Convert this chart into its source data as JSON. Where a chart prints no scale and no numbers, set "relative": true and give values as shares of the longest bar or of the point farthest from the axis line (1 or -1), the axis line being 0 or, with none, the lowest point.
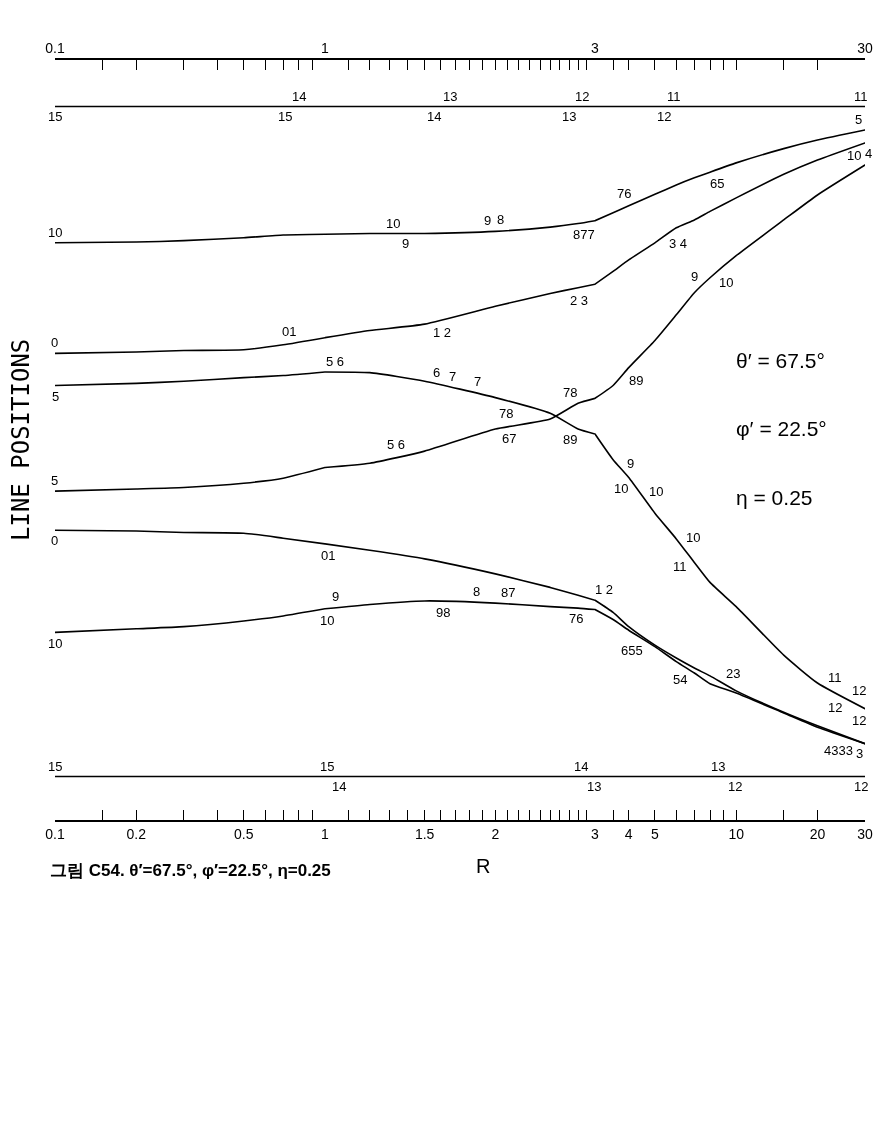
{
  "chart_data": [
    {
      "type": "line",
      "relative": true,
      "log": "x",
      "line_style": "solid",
      "title": "그림 C54. θ′=67.5°, φ′=22.5°, η=0.25",
      "ylabel": "LINE POSITIONS",
      "x": [
        0.1,
        0.2,
        0.3,
        0.5,
        0.7,
        1
      ],
      "xlim": [
        0.1,
        1
      ],
      "xticks": [
        0.1,
        {
          "value": 0.15,
          "label": null
        },
        0.2,
        {
          "value": 0.3,
          "label": null
        },
        {
          "value": 0.4,
          "label": null
        },
        0.5,
        {
          "value": 0.6,
          "label": null
        },
        {
          "value": 0.7,
          "label": null
        },
        {
          "value": 0.8,
          "label": null
        },
        {
          "value": 0.9,
          "label": null
        },
        1
      ],
      "x2lim": [
        0.1,
        1
      ],
      "x2ticks": [
        0.1,
        1
      ],
      "series": [
        {
          "color": "#000000",
          "x": [
            0.1,
            1
          ],
          "values": [
            1,
            1
          ]
        },
        {
          "color": "#000000",
          "values": [
            0.809,
            0.81,
            0.812,
            0.816,
            0.82,
            0.821
          ]
        },
        {
          "color": "#000000",
          "values": [
            0.654,
            0.656,
            0.658,
            0.659,
            0.666,
            0.676
          ]
        },
        {
          "color": "#000000",
          "values": [
            0.609,
            0.612,
            0.615,
            0.62,
            0.623,
            0.628
          ]
        },
        {
          "color": "#000000",
          "values": [
            0.461,
            0.464,
            0.466,
            0.472,
            0.479,
            0.494
          ]
        },
        {
          "color": "#000000",
          "values": [
            0.406,
            0.405,
            0.403,
            0.402,
            0.395,
            0.387
          ]
        },
        {
          "color": "#000000",
          "values": [
            0.263,
            0.268,
            0.271,
            0.279,
            0.286,
            0.296
          ]
        },
        {
          "color": "#000000",
          "x": [
            0.1,
            1
          ],
          "values": [
            0.061,
            0.061
          ]
        }
      ],
      "annotations": [
        {
          "text": "14",
          "x": 0.8,
          "y": 1
        },
        {
          "text": "15",
          "x": 0.71,
          "y": 1
        },
        {
          "text": "15",
          "x": 0.1,
          "y": 1
        },
        {
          "text": "15",
          "x": 0.1,
          "y": 0.061
        },
        {
          "text": "10",
          "x": 0.1,
          "y": 0.809
        },
        {
          "text": "0",
          "x": 0.1,
          "y": 0.654
        },
        {
          "text": "01",
          "x": 0.75,
          "y": 0.668
        },
        {
          "text": "5",
          "x": 0.1,
          "y": 0.609
        },
        {
          "text": "5",
          "x": 0.1,
          "y": 0.461
        },
        {
          "text": "0",
          "x": 0.1,
          "y": 0.406
        },
        {
          "text": "10",
          "x": 0.1,
          "y": 0.263
        },
        {
          "text": "10",
          "x": 1.0,
          "y": 0.296
        }
      ]
    },
    {
      "type": "line",
      "relative": true,
      "log": "x",
      "line_style": "solid",
      "xlabel": "R",
      "x": [
        1,
        1.2,
        1.5,
        2,
        2.5,
        2.8,
        3
      ],
      "xlim": [
        1,
        3
      ],
      "xticks": [
        {
          "value": 1.1,
          "label": null
        },
        {
          "value": 1.2,
          "label": null
        },
        {
          "value": 1.3,
          "label": null
        },
        {
          "value": 1.4,
          "label": null
        },
        1.5,
        {
          "value": 1.6,
          "label": null
        },
        {
          "value": 1.7,
          "label": null
        },
        {
          "value": 1.8,
          "label": null
        },
        {
          "value": 1.9,
          "label": null
        },
        2,
        {
          "value": 2.1,
          "label": null
        },
        {
          "value": 2.2,
          "label": null
        },
        {
          "value": 2.3,
          "label": null
        },
        {
          "value": 2.4,
          "label": null
        },
        {
          "value": 2.5,
          "label": null
        },
        {
          "value": 2.6,
          "label": null
        },
        {
          "value": 2.7,
          "label": null
        },
        {
          "value": 2.8,
          "label": null
        },
        {
          "value": 2.9,
          "label": null
        },
        3
      ],
      "series": [
        {
          "color": "#000000",
          "x": [
            1,
            3
          ],
          "values": [
            1,
            1
          ]
        },
        {
          "color": "#000000",
          "values": [
            0.821,
            0.822,
            0.822,
            0.825,
            0.831,
            0.836,
            0.84
          ]
        },
        {
          "color": "#000000",
          "values": [
            0.676,
            0.686,
            0.695,
            0.72,
            0.738,
            0.746,
            0.751
          ]
        },
        {
          "color": "#000000",
          "values": [
            0.628,
            0.627,
            0.615,
            0.592,
            0.57,
            0.548,
            0.541
          ]
        },
        {
          "color": "#000000",
          "values": [
            0.494,
            0.5,
            0.517,
            0.548,
            0.562,
            0.584,
            0.591
          ]
        },
        {
          "color": "#000000",
          "values": [
            0.387,
            0.378,
            0.366,
            0.345,
            0.326,
            0.315,
            0.308
          ]
        },
        {
          "color": "#000000",
          "values": [
            0.296,
            0.302,
            0.307,
            0.304,
            0.299,
            0.297,
            0.295
          ]
        },
        {
          "color": "#000000",
          "x": [
            1,
            3
          ],
          "values": [
            0.061,
            0.061
          ]
        }
      ],
      "annotations": [
        {
          "text": "13",
          "x": 2.7,
          "y": 1
        },
        {
          "text": "12",
          "x": 2.85,
          "y": 1
        },
        {
          "text": "13",
          "x": 1.66,
          "y": 1
        },
        {
          "text": "14",
          "x": 1.56,
          "y": 1
        },
        {
          "text": "14",
          "x": 2.83,
          "y": 0.061
        },
        {
          "text": "14",
          "x": 1.06,
          "y": 0.061
        },
        {
          "text": "15",
          "x": 1.01,
          "y": 0.061
        },
        {
          "text": "13",
          "x": 2.99,
          "y": 0.061
        },
        {
          "text": "10",
          "x": 1.32,
          "y": 0.822
        },
        {
          "text": "9",
          "x": 1.39,
          "y": 0.822
        },
        {
          "text": "8",
          "x": 2.05,
          "y": 0.826
        },
        {
          "text": "9",
          "x": 1.94,
          "y": 0.825
        },
        {
          "text": "877",
          "x": 2.85,
          "y": 0.837
        },
        {
          "text": "1 2",
          "x": 1.59,
          "y": 0.7
        },
        {
          "text": "2 3",
          "x": 2.78,
          "y": 0.745
        },
        {
          "text": "5 6",
          "x": 1.04,
          "y": 0.628
        },
        {
          "text": "6",
          "x": 1.56,
          "y": 0.612
        },
        {
          "text": "7",
          "x": 1.66,
          "y": 0.607
        },
        {
          "text": "7",
          "x": 1.84,
          "y": 0.599
        },
        {
          "text": "78",
          "x": 2.12,
          "y": 0.586
        },
        {
          "text": "89",
          "x": 2.78,
          "y": 0.549
        },
        {
          "text": "5 6",
          "x": 1.35,
          "y": 0.509
        },
        {
          "text": "67",
          "x": 2.1,
          "y": 0.551
        },
        {
          "text": "78",
          "x": 2.78,
          "y": 0.583
        },
        {
          "text": "01",
          "x": 1.02,
          "y": 0.386
        },
        {
          "text": "9",
          "x": 1.05,
          "y": 0.298
        },
        {
          "text": "98",
          "x": 1.62,
          "y": 0.306
        },
        {
          "text": "8",
          "x": 1.85,
          "y": 0.305
        },
        {
          "text": "87",
          "x": 2.1,
          "y": 0.303
        },
        {
          "text": "76",
          "x": 2.78,
          "y": 0.297
        }
      ]
    },
    {
      "type": "line",
      "relative": true,
      "log": "x",
      "line_style": "solid",
      "x": [
        3,
        3.5,
        4,
        5,
        6,
        7,
        8,
        10,
        15,
        20,
        30
      ],
      "xlim": [
        3,
        30
      ],
      "xticks": [
        {
          "value": 3.5,
          "label": null
        },
        4,
        5,
        {
          "value": 6,
          "label": null
        },
        {
          "value": 7,
          "label": null
        },
        {
          "value": 8,
          "label": null
        },
        {
          "value": 9,
          "label": null
        },
        10,
        {
          "value": 15,
          "label": null
        },
        20,
        30
      ],
      "x2lim": [
        3,
        30
      ],
      "x2ticks": [
        3,
        30
      ],
      "series": [
        {
          "color": "#000000",
          "x": [
            3,
            30
          ],
          "values": [
            1,
            1
          ]
        },
        {
          "color": "#000000",
          "values": [
            0.84,
            0.851,
            0.861,
            0.877,
            0.89,
            0.9,
            0.908,
            0.921,
            0.941,
            0.953,
            0.967
          ]
        },
        {
          "color": "#000000",
          "values": [
            0.751,
            0.769,
            0.785,
            0.809,
            0.83,
            0.841,
            0.853,
            0.872,
            0.905,
            0.925,
            0.949
          ]
        },
        {
          "color": "#000000",
          "values": [
            0.541,
            0.505,
            0.48,
            0.43,
            0.394,
            0.361,
            0.333,
            0.299,
            0.231,
            0.192,
            0.156
          ]
        },
        {
          "color": "#000000",
          "values": [
            0.591,
            0.609,
            0.634,
            0.672,
            0.708,
            0.739,
            0.76,
            0.791,
            0.841,
            0.876,
            0.918
          ]
        },
        {
          "color": "#000000",
          "values": [
            0.308,
            0.291,
            0.271,
            0.245,
            0.227,
            0.213,
            0.202,
            0.181,
            0.151,
            0.132,
            0.107
          ]
        },
        {
          "color": "#000000",
          "values": [
            0.295,
            0.281,
            0.266,
            0.243,
            0.222,
            0.206,
            0.191,
            0.178,
            0.15,
            0.13,
            0.107
          ]
        },
        {
          "color": "#000000",
          "x": [
            3,
            30
          ],
          "values": [
            0.061,
            0.061
          ]
        }
      ],
      "annotations": [
        "θ′ = 67.5°",
        "φ′ = 22.5°",
        "η = 0.25",
        {
          "text": "11",
          "x": 29,
          "y": 1
        },
        {
          "text": "11",
          "x": 5.9,
          "y": 1
        },
        {
          "text": "12",
          "x": 5.4,
          "y": 1
        },
        {
          "text": "12",
          "x": 29,
          "y": 0.061
        },
        {
          "text": "13",
          "x": 8.6,
          "y": 0.061
        },
        {
          "text": "12",
          "x": 9.9,
          "y": 0.061
        },
        {
          "text": "76",
          "x": 4.0,
          "y": 0.861
        },
        {
          "text": "65",
          "x": 8.2,
          "y": 0.909
        },
        {
          "text": "5",
          "x": 29,
          "y": 0.966
        },
        {
          "text": "3 4",
          "x": 5.7,
          "y": 0.824
        },
        {
          "text": "4",
          "x": 30,
          "y": 0.949
        },
        {
          "text": "10",
          "x": 4.1,
          "y": 0.475
        },
        {
          "text": "9",
          "x": 3.8,
          "y": 0.49
        },
        {
          "text": "10",
          "x": 4.6,
          "y": 0.449
        },
        {
          "text": "10",
          "x": 6.3,
          "y": 0.384
        },
        {
          "text": "11",
          "x": 6.8,
          "y": 0.367
        },
        {
          "text": "11",
          "x": 22,
          "y": 0.184
        },
        {
          "text": "12",
          "x": 24.5,
          "y": 0.174
        },
        {
          "text": "12",
          "x": 27,
          "y": 0.165
        },
        {
          "text": "12",
          "x": 30,
          "y": 0.156
        },
        {
          "text": "89",
          "x": 3.9,
          "y": 0.629
        },
        {
          "text": "9",
          "x": 7.5,
          "y": 0.75
        },
        {
          "text": "10",
          "x": 8.5,
          "y": 0.768
        },
        {
          "text": "10",
          "x": 29,
          "y": 0.915
        },
        {
          "text": "1 2",
          "x": 3.03,
          "y": 0.307
        },
        {
          "text": "23",
          "x": 9.2,
          "y": 0.189
        },
        {
          "text": "3",
          "x": 29.5,
          "y": 0.108
        },
        {
          "text": "655",
          "x": 4.4,
          "y": 0.256
        },
        {
          "text": "54",
          "x": 6.6,
          "y": 0.212
        },
        {
          "text": "4333",
          "x": 25,
          "y": 0.117
        }
      ]
    }
  ]
}
